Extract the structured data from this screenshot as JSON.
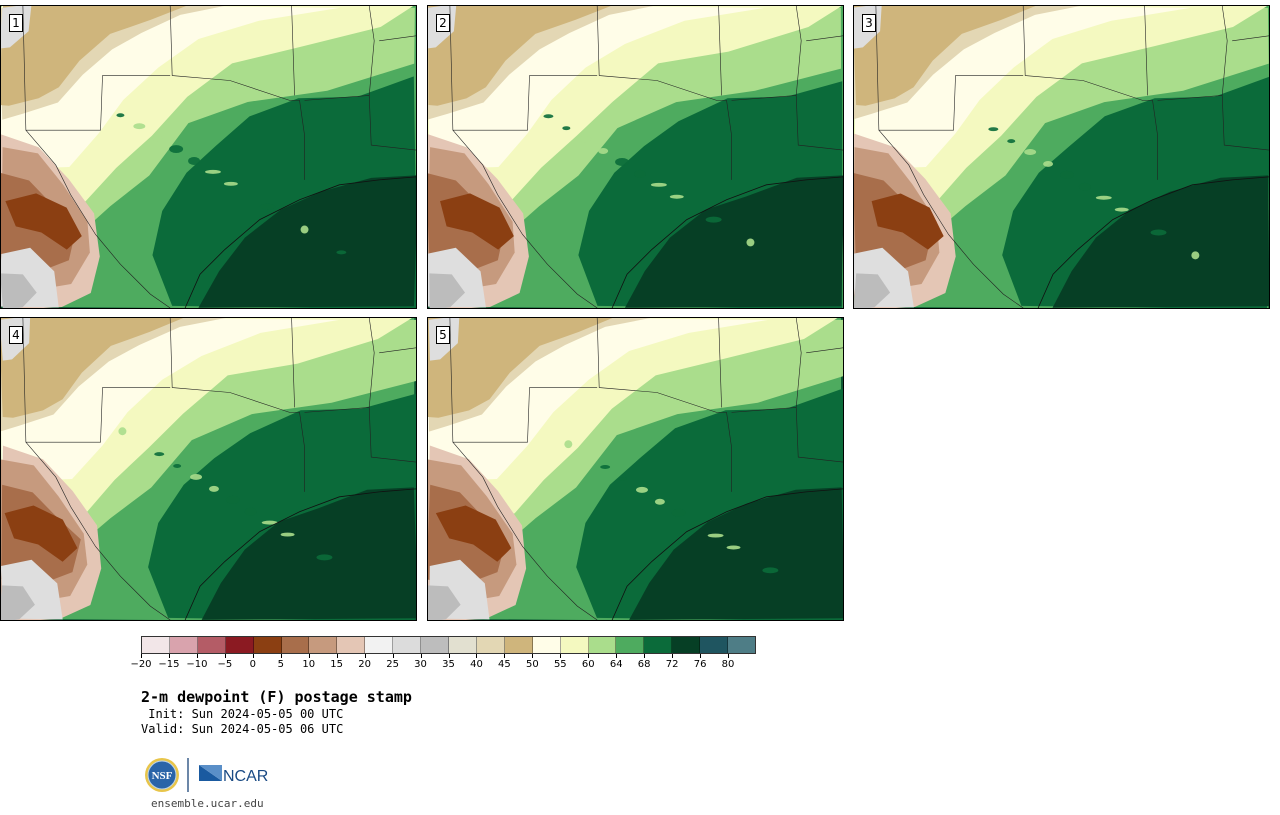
{
  "panels": [
    {
      "label": "1",
      "variant": 0
    },
    {
      "label": "2",
      "variant": 1
    },
    {
      "label": "3",
      "variant": 2
    },
    {
      "label": "4",
      "variant": 3
    },
    {
      "label": "5",
      "variant": 4
    }
  ],
  "colorbar": {
    "ticks": [
      "−20",
      "−15",
      "−10",
      "−5",
      "0",
      "5",
      "10",
      "15",
      "20",
      "25",
      "30",
      "35",
      "40",
      "45",
      "50",
      "55",
      "60",
      "64",
      "68",
      "72",
      "76",
      "80"
    ],
    "colors": [
      "#f2e6e8",
      "#d9a3ad",
      "#b45c66",
      "#8b1a22",
      "#8b3f12",
      "#a86e4b",
      "#c69a7e",
      "#e4c6b5",
      "#f2f2f2",
      "#dcdcdc",
      "#bdbdbd",
      "#e2e0d0",
      "#e3d7b4",
      "#cfb57c",
      "#fffde8",
      "#f4f9c0",
      "#aadd8c",
      "#4eab5f",
      "#0b6b3a",
      "#063f25",
      "#1f5560",
      "#4e7d86"
    ]
  },
  "title": "2-m dewpoint (F) postage stamp",
  "init_line": " Init: Sun 2024-05-05 00 UTC",
  "valid_line": "Valid: Sun 2024-05-05 06 UTC",
  "logos": {
    "nsf_text": "NSF",
    "ncar_text": "NCAR"
  },
  "url": "ensemble.ucar.edu"
}
